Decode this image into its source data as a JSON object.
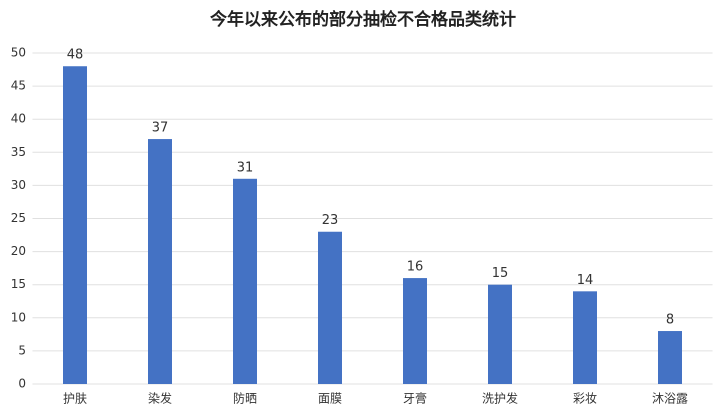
{
  "chart_data": {
    "type": "bar",
    "title": "今年以来公布的部分抽检不合格品类统计",
    "categories": [
      "护肤",
      "染发",
      "防晒",
      "面膜",
      "牙膏",
      "洗护发",
      "彩妆",
      "沐浴露"
    ],
    "values": [
      48,
      37,
      31,
      23,
      16,
      15,
      14,
      8
    ],
    "color": "#4472c4",
    "ylim": [
      0,
      50
    ],
    "yticks": [
      0,
      5,
      10,
      15,
      20,
      25,
      30,
      35,
      40,
      45,
      50
    ],
    "grid": true,
    "data_labels": true
  }
}
